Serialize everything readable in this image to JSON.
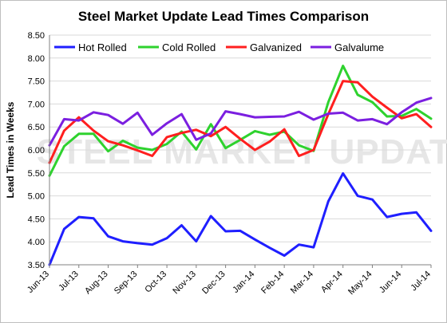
{
  "chart_data": {
    "type": "line",
    "title": "Steel Market Update Lead Times Comparison",
    "xlabel": "",
    "ylabel": "Lead Times in Weeks",
    "watermark": "STEEL MARKET UPDATE",
    "ylim": [
      3.5,
      8.5
    ],
    "yticks": [
      "3.50",
      "4.00",
      "4.50",
      "5.00",
      "5.50",
      "6.00",
      "6.50",
      "7.00",
      "7.50",
      "8.00",
      "8.50"
    ],
    "xticks": [
      "Jun-13",
      "Jul-13",
      "Aug-13",
      "Sep-13",
      "Oct-13",
      "Nov-13",
      "Dec-13",
      "Jan-14",
      "Feb-14",
      "Mar-14",
      "Apr-14",
      "May-14",
      "Jun-14",
      "Jul-14"
    ],
    "grid": true,
    "legend": "top",
    "x": [
      "Jun-13",
      "",
      "Jul-13",
      "",
      "Aug-13",
      "",
      "Sep-13",
      "",
      "Oct-13",
      "",
      "Nov-13",
      "",
      "Dec-13",
      "",
      "Jan-14",
      "",
      "Feb-14",
      "",
      "Mar-14",
      "",
      "Apr-14",
      "",
      "May-14",
      "",
      "Jun-14",
      "",
      "Jul-14"
    ],
    "series": [
      {
        "name": "Hot Rolled",
        "color": "#1f1fff",
        "values": [
          3.5,
          4.28,
          4.54,
          4.51,
          4.12,
          4.01,
          3.97,
          3.94,
          4.08,
          4.36,
          4.01,
          4.56,
          4.23,
          4.24,
          4.05,
          3.87,
          3.7,
          3.94,
          3.88,
          4.88,
          5.49,
          5.0,
          4.92,
          4.54,
          4.61,
          4.64,
          4.24
        ]
      },
      {
        "name": "Cold Rolled",
        "color": "#2ed22e",
        "values": [
          5.44,
          6.08,
          6.35,
          6.35,
          5.97,
          6.2,
          6.05,
          6.0,
          6.13,
          6.4,
          6.01,
          6.56,
          6.04,
          6.22,
          6.41,
          6.33,
          6.4,
          6.1,
          5.98,
          7.04,
          7.83,
          7.2,
          7.04,
          6.73,
          6.74,
          6.89,
          6.68
        ]
      },
      {
        "name": "Galvanized",
        "color": "#ff1f1f",
        "values": [
          5.72,
          6.42,
          6.71,
          6.42,
          6.19,
          6.1,
          5.99,
          5.87,
          6.28,
          6.37,
          6.44,
          6.3,
          6.5,
          6.24,
          6.0,
          6.18,
          6.45,
          5.87,
          6.0,
          6.78,
          7.5,
          7.47,
          7.16,
          6.92,
          6.69,
          6.78,
          6.5
        ]
      },
      {
        "name": "Galvalume",
        "color": "#7b1fe0",
        "values": [
          6.1,
          6.67,
          6.64,
          6.82,
          6.76,
          6.57,
          6.81,
          6.33,
          6.58,
          6.78,
          6.22,
          6.36,
          6.84,
          6.78,
          6.71,
          6.72,
          6.73,
          6.83,
          6.66,
          6.79,
          6.81,
          6.64,
          6.67,
          6.56,
          6.82,
          7.03,
          7.13
        ]
      }
    ]
  }
}
